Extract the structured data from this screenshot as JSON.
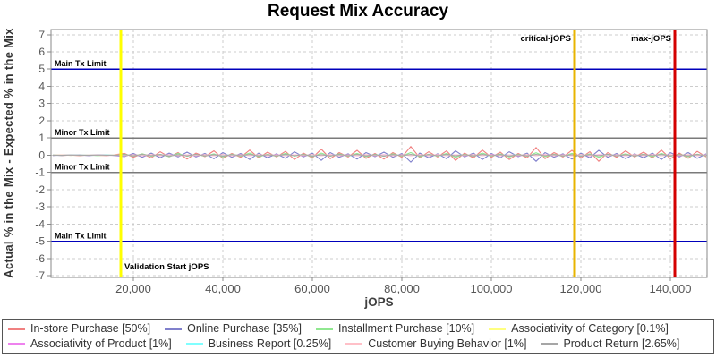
{
  "title": "Request Mix Accuracy",
  "axes": {
    "x_label": "jOPS",
    "y_label": "Actual % in the Mix - Expected % in the Mix"
  },
  "colors": {
    "grid": "#cccccc",
    "plot_border": "#888888",
    "tick_text": "#555555",
    "main_limit_line": "#0000bb",
    "minor_limit_line": "#7a7a7a",
    "validation_line": "#ffff00",
    "critical_line": "#e8b400",
    "max_line": "#d40000"
  },
  "legend": {
    "items": [
      {
        "label": "In-store Purchase [50%]",
        "color": "#f08080"
      },
      {
        "label": "Online Purchase [35%]",
        "color": "#8080cc"
      },
      {
        "label": "Installment Purchase [10%]",
        "color": "#90e890"
      },
      {
        "label": "Associativity of Category [0.1%]",
        "color": "#ffff80"
      },
      {
        "label": "Associativity of Product [1%]",
        "color": "#ee82ee"
      },
      {
        "label": "Business Report [0.25%]",
        "color": "#80ffff"
      },
      {
        "label": "Customer Buying Behavior [1%]",
        "color": "#ffc0c8"
      },
      {
        "label": "Product Return [2.65%]",
        "color": "#a6a6a6"
      }
    ]
  },
  "chart_data": {
    "type": "line",
    "title": "Request Mix Accuracy",
    "xlabel": "jOPS",
    "ylabel": "Actual % in the Mix - Expected % in the Mix",
    "xlim": [
      1600,
      148200
    ],
    "ylim": [
      -7.1,
      7.3
    ],
    "x_ticks": [
      20000,
      40000,
      60000,
      80000,
      100000,
      120000,
      140000
    ],
    "y_ticks": [
      -7,
      -6,
      -5,
      -4,
      -3,
      -2,
      -1,
      0,
      1,
      2,
      3,
      4,
      5,
      6,
      7
    ],
    "grid": true,
    "legend_position": "bottom",
    "reference_lines": [
      {
        "label": "Main Tx Limit",
        "y": 5,
        "color": "#0000bb"
      },
      {
        "label": "Minor Tx Limit",
        "y": 1,
        "color": "#7a7a7a"
      },
      {
        "label": "Minor Tx Limit",
        "y": -1,
        "color": "#7a7a7a"
      },
      {
        "label": "Main Tx Limit",
        "y": -5,
        "color": "#0000bb"
      }
    ],
    "marker_lines": [
      {
        "label": "Validation Start jOPS",
        "x": 17200,
        "color": "#ffff00",
        "label_pos": "bottom-right"
      },
      {
        "label": "critical-jOPS",
        "x": 118600,
        "color": "#e8b400",
        "label_pos": "top-left"
      },
      {
        "label": "max-jOPS",
        "x": 141000,
        "color": "#d40000",
        "label_pos": "top-left"
      }
    ],
    "x": [
      2000,
      4000,
      6000,
      8000,
      10000,
      12000,
      14000,
      16000,
      18000,
      20000,
      22000,
      24000,
      26000,
      28000,
      30000,
      32000,
      34000,
      36000,
      38000,
      40000,
      42000,
      44000,
      46000,
      48000,
      50000,
      52000,
      54000,
      56000,
      58000,
      60000,
      62000,
      64000,
      66000,
      68000,
      70000,
      72000,
      74000,
      76000,
      78000,
      80000,
      82000,
      84000,
      86000,
      88000,
      90000,
      92000,
      94000,
      96000,
      98000,
      100000,
      102000,
      104000,
      106000,
      108000,
      110000,
      112000,
      114000,
      116000,
      118000,
      120000,
      122000,
      124000,
      126000,
      128000,
      130000,
      132000,
      134000,
      136000,
      138000,
      140000,
      142000,
      144000,
      146000,
      148000
    ],
    "series": [
      {
        "name": "In-store Purchase [50%]",
        "color": "#f08080",
        "values": [
          0.02,
          -0.02,
          0.01,
          -0.03,
          0.02,
          0,
          -0.02,
          0.03,
          0.1,
          -0.12,
          0.08,
          -0.15,
          0.2,
          -0.1,
          0.15,
          -0.22,
          0.12,
          -0.08,
          0.25,
          -0.18,
          0.1,
          -0.12,
          0.3,
          -0.15,
          0.18,
          -0.1,
          0.22,
          -0.25,
          0.12,
          -0.15,
          0.35,
          -0.2,
          0.15,
          -0.1,
          0.28,
          -0.18,
          0.1,
          -0.22,
          0.15,
          -0.12,
          0.5,
          -0.15,
          0.2,
          -0.1,
          0.25,
          -0.3,
          0.12,
          -0.15,
          0.3,
          -0.12,
          0.18,
          -0.25,
          0.1,
          -0.15,
          0.45,
          -0.2,
          0.15,
          -0.1,
          0.28,
          -0.15,
          0.2,
          -0.35,
          0.15,
          -0.12,
          0.25,
          -0.1,
          0.18,
          -0.15,
          0.3,
          -0.2,
          0.12,
          -0.18,
          0.22,
          -0.1
        ]
      },
      {
        "name": "Online Purchase [35%]",
        "color": "#8080cc",
        "values": [
          -0.02,
          0.02,
          -0.01,
          0.02,
          -0.02,
          0.01,
          0.02,
          -0.02,
          -0.08,
          0.1,
          -0.12,
          0.12,
          -0.15,
          0.12,
          -0.1,
          0.18,
          -0.1,
          0.1,
          -0.2,
          0.15,
          -0.12,
          0.1,
          -0.25,
          0.12,
          -0.15,
          0.08,
          -0.18,
          0.2,
          -0.1,
          0.12,
          -0.3,
          0.15,
          -0.12,
          0.08,
          -0.22,
          0.15,
          -0.08,
          0.18,
          -0.12,
          0.1,
          -0.4,
          0.12,
          -0.15,
          0.08,
          -0.2,
          0.25,
          -0.1,
          0.12,
          -0.25,
          0.1,
          -0.15,
          0.2,
          -0.08,
          0.12,
          -0.35,
          0.15,
          -0.12,
          0.08,
          -0.22,
          0.12,
          -0.15,
          0.28,
          -0.12,
          0.1,
          -0.2,
          0.08,
          -0.15,
          0.12,
          -0.25,
          0.15,
          -0.1,
          0.15,
          -0.18,
          0.08
        ]
      },
      {
        "name": "Installment Purchase [10%]",
        "color": "#90e890",
        "values": [
          0.01,
          -0.01,
          0.02,
          -0.01,
          0.01,
          -0.02,
          0.01,
          0,
          0.06,
          -0.05,
          0.08,
          -0.06,
          0.05,
          -0.08,
          0.1,
          -0.06,
          0.05,
          -0.05,
          0.08,
          -0.1,
          0.06,
          -0.05,
          0.12,
          -0.08,
          0.05,
          -0.06,
          0.1,
          -0.05,
          0.06,
          -0.08,
          0.12,
          -0.06,
          0.08,
          -0.05,
          0.1,
          -0.08,
          0.05,
          -0.06,
          0.08,
          -0.05,
          0.15,
          -0.08,
          0.06,
          -0.05,
          0.1,
          -0.12,
          0.05,
          -0.06,
          0.12,
          -0.05,
          0.08,
          -0.1,
          0.05,
          -0.06,
          0.14,
          -0.08,
          0.06,
          -0.05,
          0.1,
          -0.06,
          0.08,
          -0.12,
          0.05,
          -0.04,
          0.08,
          -0.05,
          0.06,
          -0.08,
          0.1,
          -0.06,
          0.05,
          -0.08,
          0.06,
          -0.04
        ]
      },
      {
        "name": "Associativity of Category [0.1%]",
        "color": "#ffff80",
        "values": [
          0,
          0.01,
          -0.01,
          0,
          0.01,
          -0.01,
          0,
          0.01,
          0.02,
          -0.02,
          0.03,
          -0.02,
          0.02,
          -0.03,
          0.02,
          -0.02,
          0.03,
          -0.02,
          0.02,
          -0.03,
          0.03,
          -0.02,
          0.02,
          -0.02,
          0.03,
          -0.03,
          0.02,
          -0.02,
          0.03,
          -0.02,
          0.02,
          -0.03,
          0.02,
          -0.02,
          0.03,
          -0.02,
          0.02,
          -0.03,
          0.03,
          -0.02,
          0.02,
          -0.02,
          0.03,
          -0.03,
          0.02,
          -0.02,
          0.03,
          -0.02,
          0.02,
          -0.03,
          0.02,
          -0.02,
          0.03,
          -0.02,
          0.02,
          -0.03,
          0.03,
          -0.02,
          0.02,
          -0.02,
          0.03,
          -0.03,
          0.02,
          -0.02,
          0.03,
          -0.02,
          0.02,
          -0.03,
          0.02,
          -0.02,
          0.03,
          -0.02,
          0.02,
          -0.02
        ]
      },
      {
        "name": "Associativity of Product [1%]",
        "color": "#ee82ee",
        "values": [
          0,
          -0.01,
          0.01,
          0,
          -0.01,
          0.01,
          0,
          -0.01,
          -0.02,
          0.02,
          -0.03,
          0.02,
          -0.02,
          0.03,
          -0.02,
          0.02,
          -0.03,
          0.02,
          -0.02,
          0.03,
          -0.03,
          0.02,
          -0.02,
          0.02,
          -0.03,
          0.03,
          -0.02,
          0.02,
          -0.03,
          0.02,
          -0.02,
          0.03,
          -0.02,
          0.02,
          -0.03,
          0.02,
          -0.02,
          0.03,
          -0.03,
          0.02,
          -0.02,
          0.02,
          -0.03,
          0.03,
          -0.02,
          0.02,
          -0.03,
          0.02,
          -0.02,
          0.03,
          -0.02,
          0.02,
          -0.03,
          0.02,
          -0.02,
          0.03,
          -0.03,
          0.02,
          -0.02,
          0.02,
          -0.03,
          0.03,
          -0.02,
          0.02,
          -0.03,
          0.02,
          -0.02,
          0.03,
          -0.02,
          0.02,
          -0.03,
          0.02,
          -0.02,
          0.02
        ]
      },
      {
        "name": "Business Report [0.25%]",
        "color": "#80ffff",
        "values": [
          0,
          -0.01,
          0.01,
          0,
          0.01,
          -0.01,
          0.01,
          0,
          0.02,
          -0.02,
          0.01,
          -0.02,
          0.02,
          -0.01,
          0.02,
          -0.02,
          0.01,
          -0.01,
          0.02,
          -0.01,
          0.02,
          -0.02,
          0.01,
          -0.02,
          0.02,
          -0.01,
          0.01,
          -0.02,
          0.02,
          -0.02,
          0.01,
          -0.01,
          0.02,
          -0.02,
          0.01,
          -0.02,
          0.02,
          -0.01,
          0.02,
          -0.01,
          0.01,
          -0.02,
          0.02,
          -0.02,
          0.01,
          -0.01,
          0.02,
          -0.02,
          0.01,
          -0.02,
          0.02,
          -0.01,
          0.02,
          -0.02,
          0.01,
          -0.01,
          0.02,
          -0.02,
          0.02,
          -0.01,
          0.01,
          -0.02,
          0.02,
          -0.01,
          0.02,
          -0.02,
          0.01,
          -0.01,
          0.02,
          -0.02,
          0.01,
          -0.02,
          0.02,
          -0.01
        ]
      },
      {
        "name": "Customer Buying Behavior [1%]",
        "color": "#ffc0c8",
        "values": [
          -0.01,
          0.01,
          0,
          -0.01,
          0.01,
          0,
          -0.01,
          0.01,
          -0.03,
          0.02,
          -0.02,
          0.03,
          -0.02,
          0.02,
          -0.03,
          0.02,
          -0.02,
          0.03,
          -0.02,
          0.03,
          -0.03,
          0.02,
          -0.02,
          0.03,
          -0.02,
          0.02,
          -0.03,
          0.02,
          -0.02,
          0.03,
          -0.02,
          0.03,
          -0.03,
          0.02,
          -0.02,
          0.03,
          -0.02,
          0.02,
          -0.03,
          0.02,
          -0.02,
          0.03,
          -0.02,
          0.03,
          -0.03,
          0.02,
          -0.02,
          0.03,
          -0.02,
          0.02,
          -0.03,
          0.02,
          -0.02,
          0.03,
          -0.02,
          0.03,
          -0.03,
          0.02,
          -0.02,
          0.03,
          -0.02,
          0.02,
          -0.03,
          0.02,
          -0.02,
          0.03,
          -0.02,
          0.03,
          -0.03,
          0.02,
          -0.02,
          0.03,
          -0.02,
          0.02
        ]
      },
      {
        "name": "Product Return [2.65%]",
        "color": "#a6a6a6",
        "values": [
          0,
          -0.01,
          0.01,
          0,
          -0.01,
          0.01,
          0,
          -0.01,
          0.04,
          -0.04,
          0.05,
          -0.03,
          0.04,
          -0.05,
          0.03,
          -0.04,
          0.05,
          -0.04,
          0.03,
          -0.05,
          0.04,
          -0.03,
          0.05,
          -0.04,
          0.03,
          -0.04,
          0.05,
          -0.03,
          0.04,
          -0.05,
          0.03,
          -0.04,
          0.04,
          -0.03,
          0.05,
          -0.04,
          0.03,
          -0.05,
          0.04,
          -0.03,
          0.05,
          -0.04,
          0.04,
          -0.03,
          0.05,
          -0.04,
          0.03,
          -0.04,
          0.05,
          -0.03,
          0.04,
          -0.05,
          0.03,
          -0.04,
          0.05,
          -0.03,
          0.04,
          -0.04,
          0.03,
          -0.05,
          0.04,
          -0.03,
          0.05,
          -0.04,
          0.03,
          -0.04,
          0.04,
          -0.03,
          0.05,
          -0.04,
          0.03,
          -0.04,
          0.04,
          -0.03
        ]
      }
    ]
  }
}
